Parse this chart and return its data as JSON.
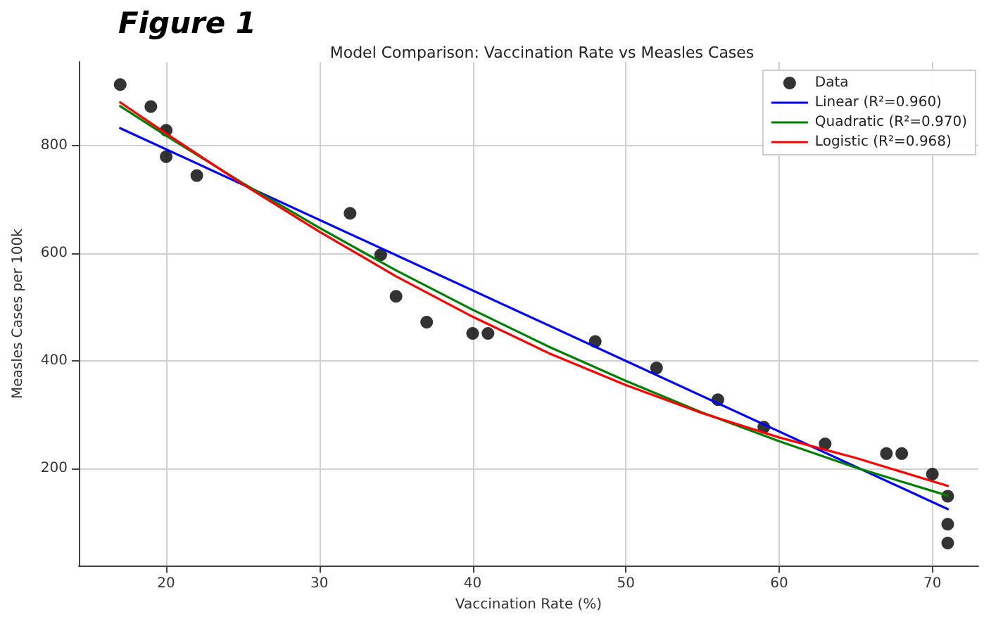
{
  "chart_data": {
    "type": "scatter",
    "title": "Model Comparison: Vaccination Rate vs Measles Cases",
    "annotations": [
      "Figure 1"
    ],
    "xlabel": "Vaccination Rate (%)",
    "ylabel": "Measles Cases per 100k",
    "xlim": [
      14.3,
      73
    ],
    "xticks": [
      20,
      30,
      40,
      50,
      60,
      70
    ],
    "ylim": [
      20,
      955
    ],
    "yticks": [
      200,
      400,
      600,
      800
    ],
    "grid": true,
    "legend": "top right",
    "series": [
      {
        "name": "Data",
        "marker": "circle",
        "color": "#000000",
        "x": [
          17,
          19,
          20,
          20,
          22,
          32,
          34,
          35,
          37,
          40,
          41,
          48,
          52,
          56,
          59,
          63,
          67,
          68,
          70,
          71,
          71,
          71
        ],
        "values": [
          913,
          872,
          828,
          779,
          744,
          674,
          597,
          520,
          472,
          451,
          451,
          436,
          387,
          328,
          277,
          246,
          228,
          228,
          190,
          149,
          97,
          62
        ]
      },
      {
        "name": "Linear (R²=0.960)",
        "type": "line",
        "marker": "none",
        "line_style": "solid",
        "color": "#0000ff",
        "x": [
          17,
          71
        ],
        "values": [
          832,
          125
        ]
      },
      {
        "name": "Quadratic (R²=0.970)",
        "type": "line",
        "marker": "none",
        "line_style": "solid",
        "color": "#008000",
        "x": [
          17,
          20,
          25,
          30,
          35,
          40,
          45,
          50,
          55,
          60,
          65,
          71
        ],
        "values": [
          873,
          818,
          730,
          647,
          568,
          495,
          426,
          363,
          304,
          251,
          202,
          150
        ]
      },
      {
        "name": "Logistic (R²=0.968)",
        "type": "line",
        "marker": "none",
        "line_style": "solid",
        "color": "#ff0000",
        "x": [
          17,
          20,
          25,
          30,
          35,
          40,
          45,
          50,
          55,
          60,
          65,
          71
        ],
        "values": [
          880,
          822,
          728,
          640,
          557,
          482,
          414,
          355,
          303,
          258,
          220,
          168
        ]
      }
    ]
  }
}
